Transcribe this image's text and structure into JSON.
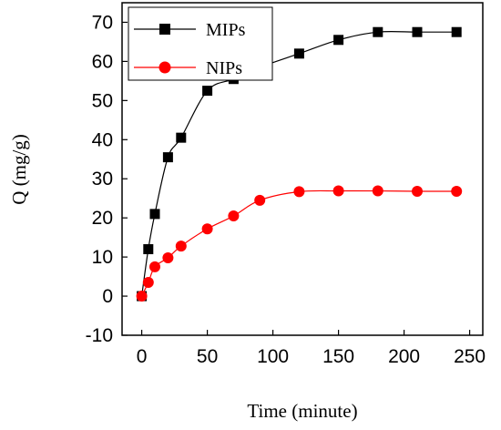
{
  "chart_data": {
    "type": "line",
    "xlabel": "Time (minute)",
    "ylabel": "Q (mg/g)",
    "xlim": [
      -15,
      260
    ],
    "ylim": [
      -10,
      75
    ],
    "x_ticks": [
      0,
      50,
      100,
      150,
      200,
      250
    ],
    "y_ticks": [
      -10,
      0,
      10,
      20,
      30,
      40,
      50,
      60,
      70
    ],
    "legend_position": "top-left",
    "series": [
      {
        "name": "MIPs",
        "color": "#000000",
        "marker": "square",
        "x": [
          0,
          5,
          10,
          20,
          30,
          50,
          70,
          90,
          120,
          150,
          180,
          210,
          240
        ],
        "y": [
          0,
          12,
          21,
          35.5,
          40.5,
          52.5,
          55.5,
          58.5,
          62,
          65.5,
          67.5,
          67.5,
          67.5
        ]
      },
      {
        "name": "NIPs",
        "color": "#ff0000",
        "marker": "circle",
        "x": [
          0,
          5,
          10,
          20,
          30,
          50,
          70,
          90,
          120,
          150,
          180,
          210,
          240
        ],
        "y": [
          0,
          3.5,
          7.5,
          9.8,
          12.8,
          17.2,
          20.5,
          24.5,
          26.7,
          26.9,
          26.9,
          26.8,
          26.8
        ]
      }
    ]
  }
}
